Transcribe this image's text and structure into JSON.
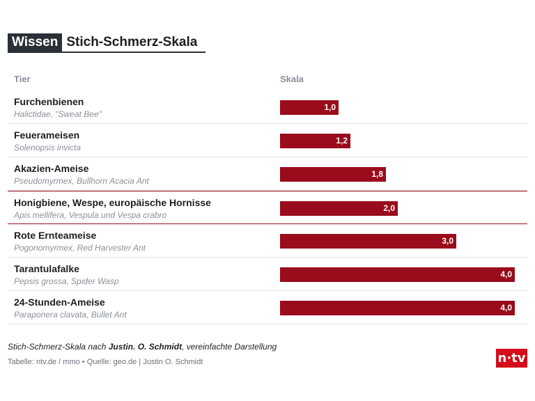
{
  "header": {
    "badge": "Wissen",
    "title": "Stich-Schmerz-Skala"
  },
  "columns": {
    "animal": "Tier",
    "scale": "Skala"
  },
  "chart_data": {
    "type": "bar",
    "orientation": "horizontal",
    "title": "Stich-Schmerz-Skala",
    "xlim": [
      0,
      4
    ],
    "categories": [
      "Furchenbienen",
      "Feuerameisen",
      "Akazien-Ameise",
      "Honigbiene, Wespe, europäische Hornisse",
      "Rote Ernteameise",
      "Tarantulafalke",
      "24-Stunden-Ameise"
    ],
    "subtitles": [
      "Halictidae, \"Sweat Bee\"",
      "Solenopsis invicta",
      "Pseudomyrmex, Bullhorn Acacia Ant",
      "Apis mellifera, Vespula und Vespa crabro",
      "Pogonomyrmex, Red Harvester Ant",
      "Pepsis grossa, Spider Wasp",
      "Paraponera clavata, Bullet Ant"
    ],
    "values": [
      1.0,
      1.2,
      1.8,
      2.0,
      3.0,
      4.0,
      4.0
    ],
    "value_labels": [
      "1,0",
      "1,2",
      "1,8",
      "2,0",
      "3,0",
      "4,0",
      "4,0"
    ],
    "highlighted_index": 3,
    "bar_color": "#9a0b1b"
  },
  "footer": {
    "note_pre": "Stich-Schmerz-Skala nach ",
    "note_bold": "Justin. O. Schmidt",
    "note_post": ", vereinfachte Darstellung",
    "source": "Tabelle: ntv.de / mmo • Quelle: geo.de | Justin O. Schmidt",
    "logo": "n·tv"
  },
  "colors": {
    "accent": "#9a0b1b",
    "brand": "#d50c1b",
    "badge_bg": "#2b3038"
  }
}
